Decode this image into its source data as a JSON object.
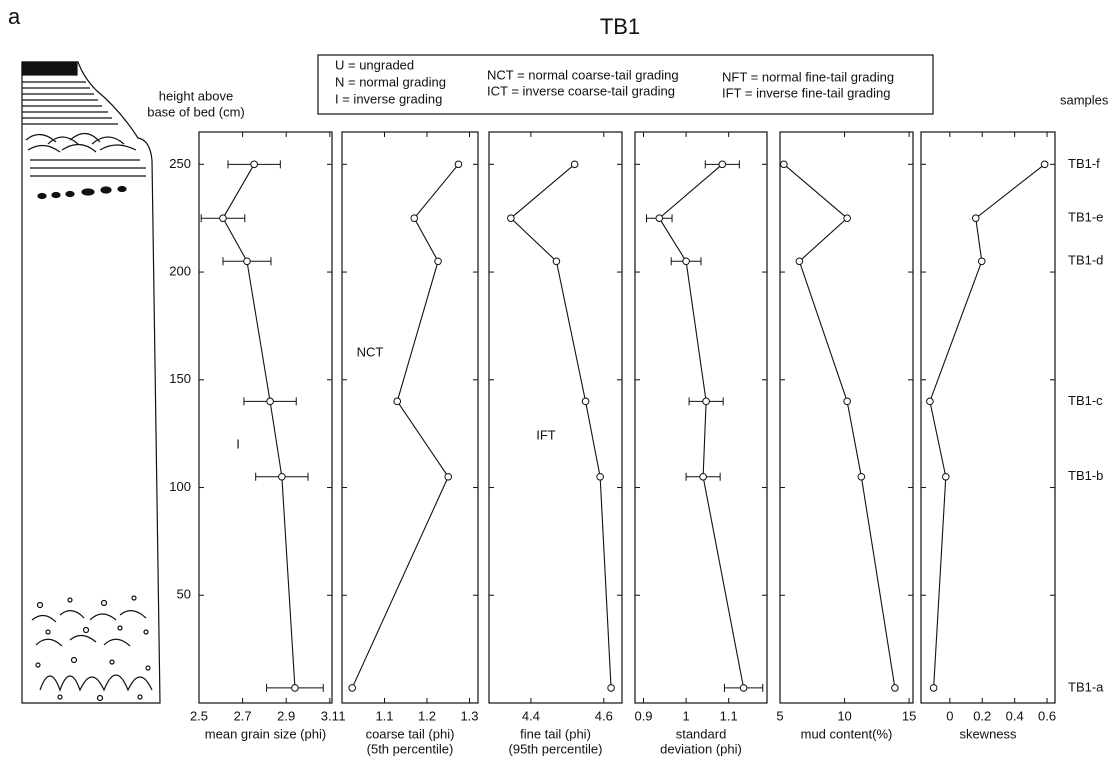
{
  "figure": {
    "panel_label": "a",
    "title": "TB1",
    "legend": [
      "U = ungraded",
      "N = normal grading",
      "I = inverse grading",
      "NCT = normal coarse-tail grading",
      "ICT = inverse coarse-tail grading",
      "NFT = normal fine-tail grading",
      "IFT = inverse fine-tail grading"
    ],
    "y_label": [
      "height above",
      "base of bed (cm)"
    ],
    "samples_label": "samples",
    "samples": [
      "TB1-f",
      "TB1-e",
      "TB1-d",
      "TB1-c",
      "TB1-b",
      "TB1-a"
    ]
  },
  "chart_data": [
    {
      "type": "line",
      "x_label": [
        "mean grain size (phi)"
      ],
      "x": [
        2.753,
        2.61,
        2.72,
        2.826,
        2.88,
        2.94
      ],
      "xerr": [
        0.12,
        0.1,
        0.11,
        0.12,
        0.12,
        0.13
      ],
      "y": [
        250,
        225,
        205,
        140,
        105,
        7
      ],
      "xlim": [
        2.5,
        3.11
      ],
      "xticks": [
        2.5,
        2.7,
        2.9,
        3.1
      ],
      "ylim": [
        0,
        265
      ],
      "yticks": [
        50,
        100,
        150,
        200,
        250
      ],
      "annotation": "I"
    },
    {
      "type": "line",
      "x_label": [
        "coarse tail (phi)",
        "(5th percentile)"
      ],
      "x": [
        1.274,
        1.17,
        1.226,
        1.13,
        1.25,
        1.024
      ],
      "y": [
        250,
        225,
        205,
        140,
        105,
        7
      ],
      "xlim": [
        1,
        1.32
      ],
      "xticks": [
        1,
        1.1,
        1.2,
        1.3
      ],
      "annotation": "NCT"
    },
    {
      "type": "line",
      "x_label": [
        "fine tail (phi)",
        "(95th percentile)"
      ],
      "x": [
        4.52,
        4.345,
        4.47,
        4.55,
        4.59,
        4.62
      ],
      "y": [
        250,
        225,
        205,
        140,
        105,
        7
      ],
      "xlim": [
        4.285,
        4.65
      ],
      "xticks": [
        4.4,
        4.6
      ],
      "annotation": "IFT"
    },
    {
      "type": "line",
      "x_label": [
        "standard",
        "deviation (phi)"
      ],
      "x": [
        1.085,
        0.937,
        1.0,
        1.047,
        1.04,
        1.135
      ],
      "xerr": [
        0.04,
        0.03,
        0.035,
        0.04,
        0.04,
        0.045
      ],
      "y": [
        250,
        225,
        205,
        140,
        105,
        7
      ],
      "xlim": [
        0.88,
        1.19
      ],
      "xticks": [
        0.9,
        1,
        1.1
      ]
    },
    {
      "type": "line",
      "x_label": [
        "mud content(%)"
      ],
      "x": [
        5.3,
        10.2,
        6.5,
        10.2,
        11.3,
        13.9
      ],
      "y": [
        250,
        225,
        205,
        140,
        105,
        7
      ],
      "xlim": [
        5,
        15.3
      ],
      "xticks": [
        5,
        10,
        15
      ]
    },
    {
      "type": "line",
      "x_label": [
        "skewness"
      ],
      "x": [
        0.585,
        0.16,
        0.197,
        -0.123,
        -0.025,
        -0.1
      ],
      "y": [
        250,
        225,
        205,
        140,
        105,
        7
      ],
      "xlim": [
        -0.178,
        0.649
      ],
      "xticks": [
        0,
        0.2,
        0.4,
        0.6
      ]
    }
  ]
}
